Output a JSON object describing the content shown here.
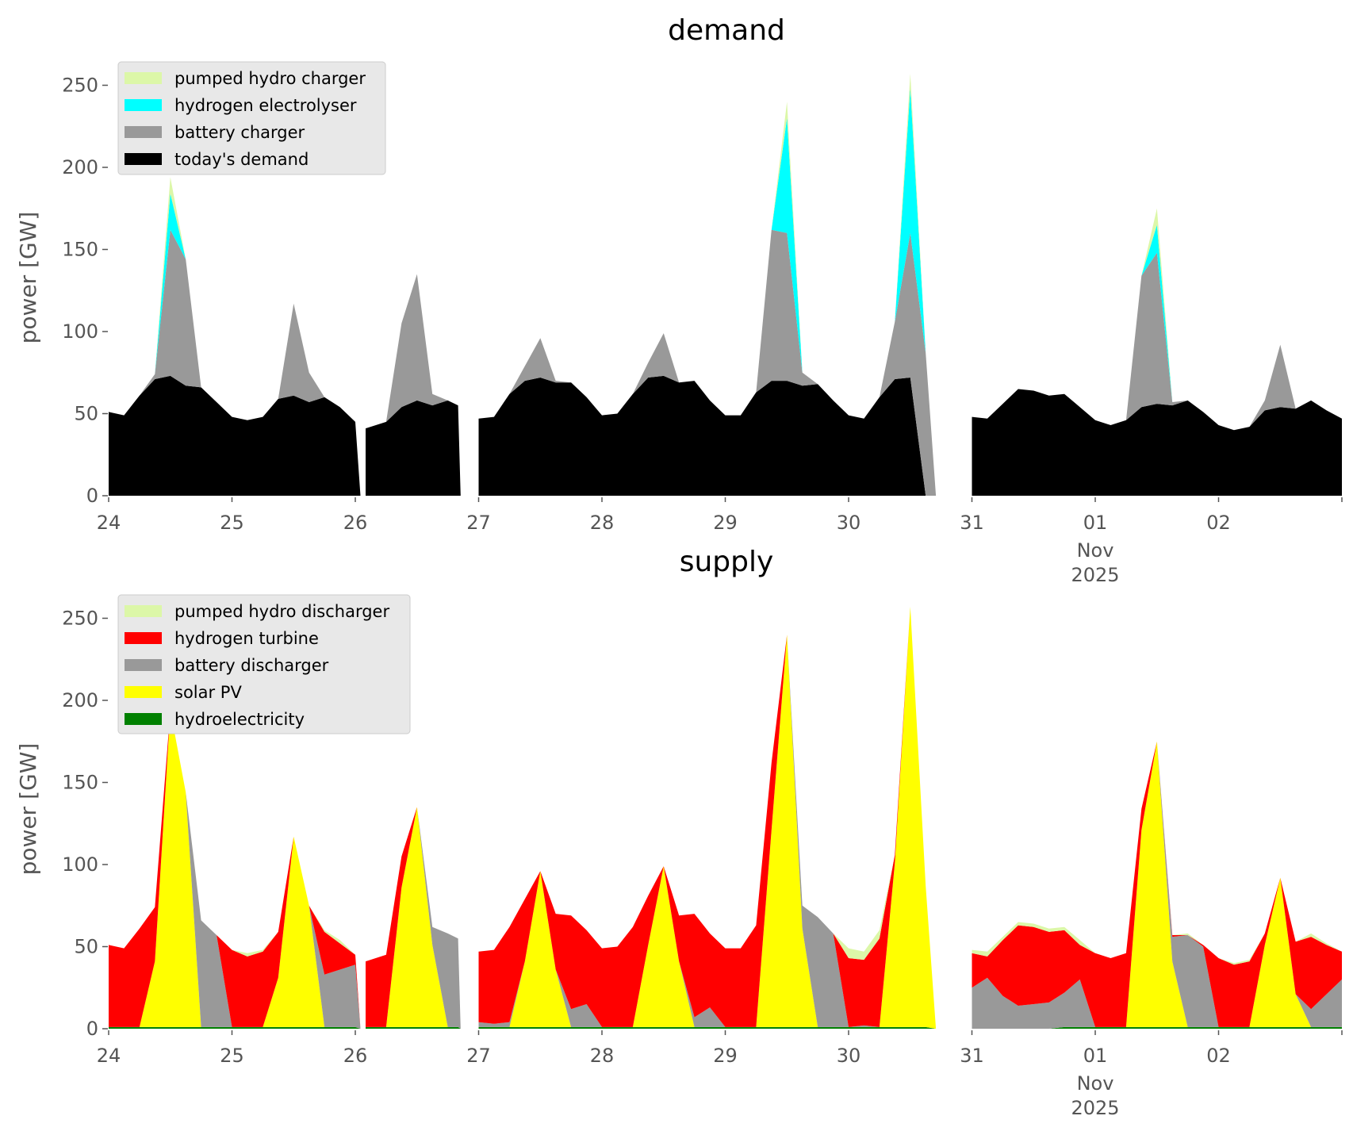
{
  "chart_data": [
    {
      "type": "area",
      "stacked": true,
      "title": "demand",
      "xlabel": "",
      "ylabel": "power [GW]",
      "xlim": [
        "2025-10-24 00:00",
        "2025-11-03 00:00"
      ],
      "ylim": [
        0,
        265
      ],
      "yticks": [
        "0",
        "50",
        "100",
        "150",
        "200",
        "250"
      ],
      "xticks": [
        "24",
        "25",
        "26",
        "27",
        "28",
        "29",
        "30",
        "31",
        "01",
        "02"
      ],
      "xtick_sub": {
        "month": "Nov",
        "year": "2025"
      },
      "grid": false,
      "legend": "top-left",
      "series": [
        {
          "name": "today's demand",
          "color": "#000000",
          "values": [
            51,
            49,
            61,
            71,
            73,
            67,
            66,
            57,
            48,
            46,
            48,
            59,
            61,
            57,
            60,
            54,
            45,
            0,
            null,
            41,
            45,
            54,
            58,
            55,
            58,
            55,
            0,
            null,
            47,
            48,
            62,
            70,
            72,
            69,
            69,
            60,
            49,
            50,
            62,
            72,
            73,
            69,
            70,
            58,
            49,
            49,
            63,
            70,
            70,
            67,
            68,
            58,
            49,
            47,
            60,
            71,
            72,
            0,
            0,
            null,
            48,
            47,
            56,
            65,
            64,
            61,
            62,
            54,
            46,
            43,
            46,
            54,
            56,
            55,
            58,
            51,
            43,
            40,
            42,
            52,
            54,
            53,
            58,
            52,
            47
          ]
        },
        {
          "name": "battery charger",
          "color": "#999999",
          "values": [
            0,
            0,
            0,
            3,
            89,
            77,
            0,
            0,
            0,
            0,
            0,
            0,
            56,
            18,
            0,
            0,
            0,
            0,
            null,
            0,
            0,
            51,
            77,
            7,
            0,
            0,
            0,
            null,
            0,
            0,
            0,
            9,
            24,
            1,
            0,
            0,
            0,
            0,
            0,
            9,
            26,
            0,
            0,
            0,
            0,
            0,
            0,
            92,
            90,
            8,
            0,
            0,
            0,
            0,
            0,
            35,
            88,
            87,
            0,
            null,
            0,
            0,
            0,
            0,
            0,
            0,
            0,
            0,
            0,
            0,
            0,
            80,
            92,
            2,
            0,
            0,
            0,
            0,
            0,
            6,
            38,
            0,
            0,
            0,
            0
          ]
        },
        {
          "name": "hydrogen electrolyser",
          "color": "#00ffff",
          "values": [
            0,
            0,
            0,
            0,
            22,
            0,
            0,
            0,
            0,
            0,
            0,
            0,
            0,
            0,
            0,
            0,
            0,
            0,
            null,
            0,
            0,
            0,
            0,
            0,
            0,
            0,
            0,
            null,
            0,
            0,
            0,
            0,
            0,
            0,
            0,
            0,
            0,
            0,
            0,
            0,
            0,
            0,
            0,
            0,
            0,
            0,
            0,
            0,
            70,
            0,
            0,
            0,
            0,
            0,
            0,
            0,
            88,
            0,
            0,
            null,
            0,
            0,
            0,
            0,
            0,
            0,
            0,
            0,
            0,
            0,
            0,
            0,
            17,
            0,
            0,
            0,
            0,
            0,
            0,
            0,
            0,
            0,
            0,
            0,
            0
          ]
        },
        {
          "name": "pumped hydro charger",
          "color": "#dcf7a8",
          "values": [
            0,
            0,
            0,
            0,
            10,
            0,
            0,
            0,
            0,
            0,
            0,
            0,
            0,
            0,
            0,
            0,
            0,
            0,
            null,
            0,
            0,
            0,
            0,
            0,
            0,
            0,
            0,
            null,
            0,
            0,
            0,
            0,
            0,
            0,
            0,
            0,
            0,
            0,
            0,
            0,
            0,
            0,
            0,
            0,
            0,
            0,
            0,
            0,
            10,
            0,
            0,
            0,
            0,
            0,
            0,
            0,
            9,
            0,
            0,
            null,
            0,
            0,
            0,
            0,
            0,
            0,
            0,
            0,
            0,
            0,
            0,
            0,
            10,
            0,
            0,
            0,
            0,
            0,
            0,
            0,
            0,
            0,
            0,
            0,
            0
          ]
        }
      ]
    },
    {
      "type": "area",
      "stacked": true,
      "title": "supply",
      "xlabel": "",
      "ylabel": "power [GW]",
      "xlim": [
        "2025-10-24 00:00",
        "2025-11-03 00:00"
      ],
      "ylim": [
        0,
        265
      ],
      "yticks": [
        "0",
        "50",
        "100",
        "150",
        "200",
        "250"
      ],
      "xticks": [
        "24",
        "25",
        "26",
        "27",
        "28",
        "29",
        "30",
        "31",
        "01",
        "02"
      ],
      "xtick_sub": {
        "month": "Nov",
        "year": "2025"
      },
      "grid": false,
      "legend": "top-left",
      "series": [
        {
          "name": "hydroelectricity",
          "color": "#008000",
          "values": [
            1,
            1,
            1,
            1,
            1,
            1,
            1,
            1,
            1,
            1,
            1,
            1,
            1,
            1,
            1,
            1,
            1,
            0,
            null,
            1,
            1,
            1,
            1,
            1,
            1,
            1,
            0,
            null,
            1,
            1,
            1,
            1,
            1,
            1,
            1,
            1,
            1,
            1,
            1,
            1,
            1,
            1,
            1,
            1,
            1,
            1,
            1,
            1,
            1,
            1,
            1,
            1,
            1,
            1,
            1,
            1,
            1,
            1,
            0,
            null,
            0,
            0,
            0,
            0,
            0,
            0,
            1,
            1,
            1,
            1,
            1,
            1,
            1,
            1,
            1,
            1,
            1,
            1,
            1,
            1,
            1,
            1,
            1,
            1,
            1
          ]
        },
        {
          "name": "solar PV",
          "color": "#ffff00",
          "values": [
            0,
            0,
            0,
            40,
            193,
            143,
            0,
            0,
            0,
            0,
            0,
            30,
            116,
            74,
            0,
            0,
            0,
            0,
            null,
            0,
            0,
            85,
            134,
            50,
            0,
            0,
            0,
            null,
            0,
            0,
            0,
            40,
            95,
            35,
            0,
            0,
            0,
            0,
            0,
            50,
            98,
            40,
            0,
            0,
            0,
            0,
            0,
            120,
            239,
            60,
            0,
            0,
            0,
            0,
            0,
            100,
            256,
            86,
            0,
            null,
            0,
            0,
            0,
            0,
            0,
            0,
            0,
            0,
            0,
            0,
            0,
            120,
            174,
            40,
            0,
            0,
            0,
            0,
            0,
            50,
            91,
            20,
            0,
            0,
            0
          ]
        },
        {
          "name": "battery discharger",
          "color": "#999999",
          "values": [
            0,
            0,
            0,
            0,
            0,
            0,
            65,
            56,
            0,
            0,
            0,
            0,
            0,
            0,
            32,
            35,
            38,
            0,
            null,
            0,
            0,
            0,
            0,
            11,
            57,
            54,
            0,
            null,
            3,
            2,
            3,
            0,
            0,
            0,
            11,
            14,
            0,
            0,
            0,
            0,
            0,
            0,
            6,
            12,
            0,
            0,
            0,
            0,
            0,
            14,
            67,
            57,
            0,
            1,
            0,
            0,
            0,
            0,
            0,
            null,
            25,
            31,
            20,
            14,
            15,
            16,
            21,
            29,
            0,
            0,
            0,
            0,
            0,
            15,
            56,
            49,
            0,
            0,
            0,
            0,
            0,
            0,
            11,
            20,
            29
          ]
        },
        {
          "name": "hydrogen turbine",
          "color": "#ff0000",
          "values": [
            50,
            48,
            60,
            33,
            0,
            0,
            0,
            0,
            47,
            43,
            46,
            28,
            0,
            0,
            26,
            16,
            6,
            0,
            null,
            40,
            44,
            19,
            0,
            0,
            0,
            0,
            0,
            null,
            43,
            45,
            58,
            38,
            0,
            34,
            57,
            45,
            48,
            49,
            61,
            30,
            0,
            28,
            63,
            45,
            48,
            48,
            62,
            41,
            0,
            0,
            0,
            0,
            42,
            40,
            54,
            5,
            0,
            0,
            0,
            null,
            21,
            13,
            34,
            49,
            47,
            43,
            38,
            21,
            45,
            42,
            45,
            13,
            0,
            1,
            0,
            1,
            42,
            38,
            40,
            7,
            0,
            32,
            44,
            30,
            17
          ]
        },
        {
          "name": "pumped hydro discharger",
          "color": "#dcf7a8",
          "values": [
            0,
            0,
            0,
            0,
            0,
            0,
            0,
            0,
            0,
            2,
            1,
            0,
            0,
            0,
            1,
            2,
            0,
            0,
            null,
            0,
            0,
            0,
            0,
            0,
            0,
            0,
            0,
            null,
            0,
            0,
            0,
            0,
            0,
            0,
            0,
            0,
            0,
            0,
            0,
            0,
            0,
            0,
            0,
            0,
            0,
            0,
            0,
            0,
            0,
            0,
            0,
            0,
            6,
            5,
            5,
            0,
            0,
            0,
            0,
            null,
            2,
            3,
            2,
            2,
            2,
            2,
            2,
            3,
            0,
            0,
            0,
            0,
            0,
            0,
            1,
            0,
            0,
            1,
            1,
            0,
            0,
            0,
            2,
            1,
            0
          ]
        }
      ]
    }
  ],
  "x": [
    "2025-10-24 00:00",
    "2025-10-24 03:00",
    "2025-10-24 06:00",
    "2025-10-24 09:00",
    "2025-10-24 12:00",
    "2025-10-24 15:00",
    "2025-10-24 18:00",
    "2025-10-24 21:00",
    "2025-10-25 00:00",
    "2025-10-25 03:00",
    "2025-10-25 06:00",
    "2025-10-25 09:00",
    "2025-10-25 12:00",
    "2025-10-25 15:00",
    "2025-10-25 18:00",
    "2025-10-25 21:00",
    "2025-10-26 00:00",
    "2025-10-26 01:00",
    "2025-10-26 01:30",
    "2025-10-26 02:00",
    "2025-10-26 06:00",
    "2025-10-26 09:00",
    "2025-10-26 12:00",
    "2025-10-26 15:00",
    "2025-10-26 18:00",
    "2025-10-26 20:00",
    "2025-10-26 20:30",
    "2025-10-26 22:00",
    "2025-10-27 00:00",
    "2025-10-27 03:00",
    "2025-10-27 06:00",
    "2025-10-27 09:00",
    "2025-10-27 12:00",
    "2025-10-27 15:00",
    "2025-10-27 18:00",
    "2025-10-27 21:00",
    "2025-10-28 00:00",
    "2025-10-28 03:00",
    "2025-10-28 06:00",
    "2025-10-28 09:00",
    "2025-10-28 12:00",
    "2025-10-28 15:00",
    "2025-10-28 18:00",
    "2025-10-28 21:00",
    "2025-10-29 00:00",
    "2025-10-29 03:00",
    "2025-10-29 06:00",
    "2025-10-29 09:00",
    "2025-10-29 12:00",
    "2025-10-29 15:00",
    "2025-10-29 18:00",
    "2025-10-29 21:00",
    "2025-10-30 00:00",
    "2025-10-30 03:00",
    "2025-10-30 06:00",
    "2025-10-30 09:00",
    "2025-10-30 12:00",
    "2025-10-30 15:00",
    "2025-10-30 17:00",
    "2025-10-30 21:00",
    "2025-10-31 00:00",
    "2025-10-31 03:00",
    "2025-10-31 06:00",
    "2025-10-31 09:00",
    "2025-10-31 12:00",
    "2025-10-31 15:00",
    "2025-10-31 18:00",
    "2025-10-31 21:00",
    "2025-11-01 00:00",
    "2025-11-01 03:00",
    "2025-11-01 06:00",
    "2025-11-01 09:00",
    "2025-11-01 12:00",
    "2025-11-01 15:00",
    "2025-11-01 18:00",
    "2025-11-01 21:00",
    "2025-11-02 00:00",
    "2025-11-02 03:00",
    "2025-11-02 06:00",
    "2025-11-02 09:00",
    "2025-11-02 12:00",
    "2025-11-02 15:00",
    "2025-11-02 18:00",
    "2025-11-02 21:00",
    "2025-11-03 00:00"
  ]
}
